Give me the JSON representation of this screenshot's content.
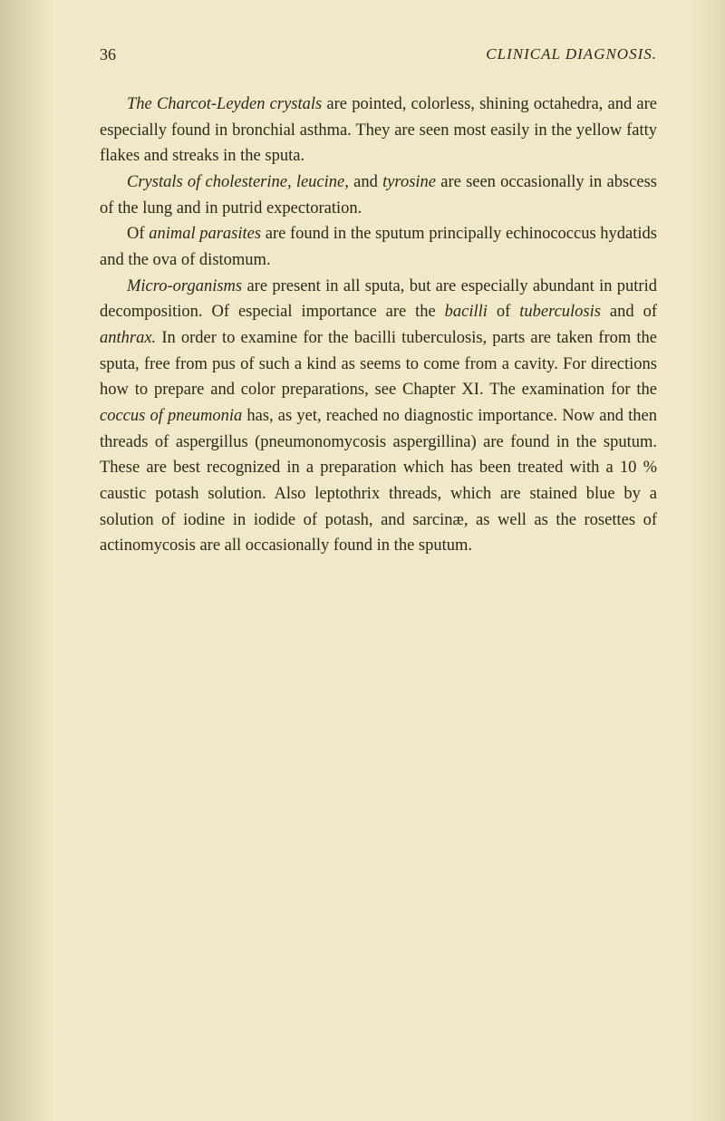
{
  "page_number": "36",
  "running_title": "CLINICAL DIAGNOSIS.",
  "paragraphs": {
    "p1_pre": "The Charcot-Leyden crystals",
    "p1_post": " are pointed, colorless, shining octahedra, and are especially found in bronchial asthma. They are seen most easily in the yellow fatty flakes and streaks in the sputa.",
    "p2_pre": "Crystals of cholesterine, leucine,",
    "p2_mid": " and ",
    "p2_ital2": "tyrosine",
    "p2_post": " are seen occasionally in abscess of the lung and in putrid expectoration.",
    "p3_pre": "Of ",
    "p3_ital": "animal parasites",
    "p3_post": " are found in the sputum principally echinococcus hydatids and the ova of distomum.",
    "p4_ital": "Micro-organisms",
    "p4_a": " are present in all sputa, but are especially abundant in putrid decomposition. Of especial importance are the ",
    "p4_ital2": "bacilli",
    "p4_b": " of ",
    "p4_ital3": "tuberculosis",
    "p4_c": " and of ",
    "p4_ital4": "anthrax.",
    "p4_d": " In order to examine for the bacilli tuberculosis, parts are taken from the sputa, free from pus of such a kind as seems to come from a cavity. For directions how to prepare and color preparations, see Chapter XI. The examination for the ",
    "p4_ital5": "coccus of pneumonia",
    "p4_e": " has, as yet, reached no diagnostic importance. Now and then threads of aspergillus (pneumonomycosis aspergillina) are found in the sputum. These are best recognized in a preparation which has been treated with a 10 % caustic potash solution. Also leptothrix threads, which are stained blue by a solution of iodine in iodide of potash, and sarcinæ, as well as the rosettes of actinomycosis are all occasionally found in the sputum."
  },
  "colors": {
    "background": "#f0e8c8",
    "text": "#2a2a1a"
  },
  "typography": {
    "body_fontsize": 18.5,
    "header_fontsize": 18,
    "line_height": 1.55
  }
}
